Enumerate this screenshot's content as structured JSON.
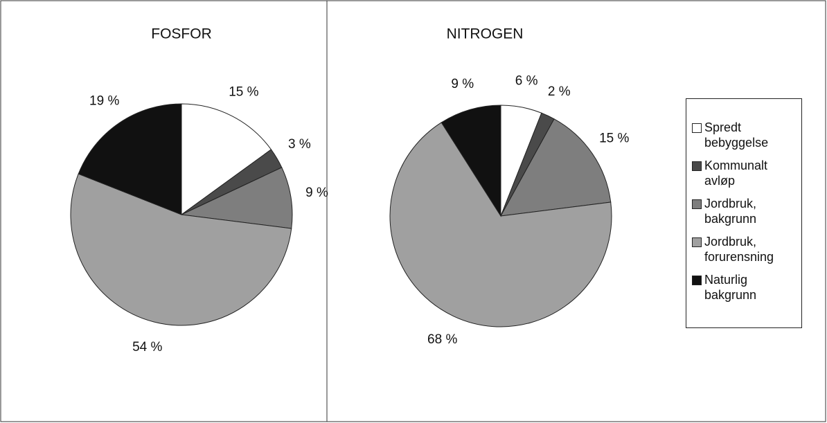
{
  "chart_data": [
    {
      "type": "pie",
      "title": "FOSFOR",
      "categories": [
        "Spredt bebyggelse",
        "Kommunalt avløp",
        "Jordbruk, bakgrunn",
        "Jordbruk, forurensning",
        "Naturlig bakgrunn"
      ],
      "values": [
        15,
        3,
        9,
        54,
        19
      ],
      "value_labels": [
        "15 %",
        "3 %",
        "9 %",
        "54 %",
        "19 %"
      ],
      "colors": [
        "#ffffff",
        "#4a4a4a",
        "#7e7e7e",
        "#a0a0a0",
        "#111111"
      ]
    },
    {
      "type": "pie",
      "title": "NITROGEN",
      "categories": [
        "Spredt bebyggelse",
        "Kommunalt avløp",
        "Jordbruk, bakgrunn",
        "Jordbruk, forurensning",
        "Naturlig bakgrunn"
      ],
      "values": [
        6,
        2,
        15,
        68,
        9
      ],
      "value_labels": [
        "6 %",
        "2 %",
        "15 %",
        "68 %",
        "9 %"
      ],
      "colors": [
        "#ffffff",
        "#4a4a4a",
        "#7e7e7e",
        "#a0a0a0",
        "#111111"
      ],
      "legend": "right"
    }
  ]
}
